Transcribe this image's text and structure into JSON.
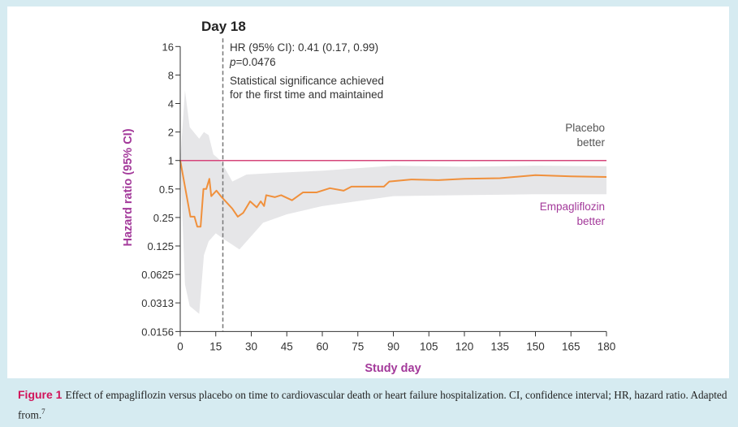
{
  "chart_data": {
    "type": "line",
    "title": "",
    "xlabel": "Study day",
    "ylabel": "Hazard ratio (95% CI)",
    "xlim": [
      0,
      180
    ],
    "ylim": [
      0.0156,
      16
    ],
    "yscale": "log2",
    "x_ticks": [
      0,
      15,
      30,
      45,
      60,
      75,
      90,
      105,
      120,
      135,
      150,
      165,
      180
    ],
    "y_ticks": [
      16,
      8,
      4,
      2,
      1,
      0.5,
      0.25,
      0.125,
      0.0625,
      0.0313,
      0.0156
    ],
    "y_tick_labels": [
      "16",
      "8",
      "4",
      "2",
      "1",
      "0.5",
      "0.25",
      "0.125",
      "0.0625",
      "0.0313",
      "0.0156"
    ],
    "grid": false,
    "reference_line": {
      "y": 1,
      "color": "#d6457a"
    },
    "marker_line": {
      "x": 18,
      "label": "Day 18"
    },
    "series": [
      {
        "name": "Hazard ratio",
        "color": "#f0903c",
        "points": [
          [
            0,
            1
          ],
          [
            4.3,
            0.255
          ],
          [
            6,
            0.255
          ],
          [
            7.2,
            0.2
          ],
          [
            8.6,
            0.2
          ],
          [
            9.8,
            0.5
          ],
          [
            11,
            0.5
          ],
          [
            12.3,
            0.64
          ],
          [
            13.1,
            0.42
          ],
          [
            15.3,
            0.48
          ],
          [
            17.5,
            0.41
          ],
          [
            22,
            0.31
          ],
          [
            24.3,
            0.255
          ],
          [
            26.6,
            0.28
          ],
          [
            29.5,
            0.37
          ],
          [
            32.3,
            0.32
          ],
          [
            34,
            0.37
          ],
          [
            35.4,
            0.33
          ],
          [
            36.3,
            0.43
          ],
          [
            40,
            0.41
          ],
          [
            42.6,
            0.43
          ],
          [
            47.2,
            0.38
          ],
          [
            51.8,
            0.46
          ],
          [
            57.5,
            0.46
          ],
          [
            63.2,
            0.51
          ],
          [
            69,
            0.48
          ],
          [
            72.3,
            0.53
          ],
          [
            86,
            0.53
          ],
          [
            88.3,
            0.6
          ],
          [
            97.5,
            0.63
          ],
          [
            109,
            0.62
          ],
          [
            120,
            0.64
          ],
          [
            135,
            0.65
          ],
          [
            150,
            0.7
          ],
          [
            165,
            0.68
          ],
          [
            180,
            0.67
          ]
        ]
      },
      {
        "name": "95% CI",
        "color": "#e6e6e8",
        "upper": [
          [
            0,
            1
          ],
          [
            2,
            5.5
          ],
          [
            4,
            2.25
          ],
          [
            8,
            1.7
          ],
          [
            10,
            2.0
          ],
          [
            12,
            1.85
          ],
          [
            14,
            1.16
          ],
          [
            17,
            1.0
          ],
          [
            22,
            0.6
          ],
          [
            28,
            0.71
          ],
          [
            40,
            0.74
          ],
          [
            60,
            0.78
          ],
          [
            90,
            0.88
          ],
          [
            120,
            0.86
          ],
          [
            150,
            0.88
          ],
          [
            180,
            0.87
          ]
        ],
        "lower": [
          [
            0,
            1
          ],
          [
            2,
            0.049
          ],
          [
            4,
            0.029
          ],
          [
            8,
            0.024
          ],
          [
            10,
            0.1
          ],
          [
            12,
            0.14
          ],
          [
            15,
            0.17
          ],
          [
            18,
            0.15
          ],
          [
            25,
            0.115
          ],
          [
            35,
            0.22
          ],
          [
            45,
            0.27
          ],
          [
            60,
            0.33
          ],
          [
            90,
            0.42
          ],
          [
            120,
            0.43
          ],
          [
            150,
            0.44
          ],
          [
            180,
            0.44
          ]
        ]
      }
    ],
    "annotations": {
      "day_label": "Day 18",
      "hr_line": "HR (95% CI): 0.41 (0.17, 0.99)",
      "p_label": "p",
      "p_value": "=0.0476",
      "sig_line1": "Statistical significance achieved",
      "sig_line2": "for the first time and maintained",
      "placebo_1": "Placebo",
      "placebo_2": "better",
      "empa_1": "Empagliflozin",
      "empa_2": "better"
    }
  },
  "caption": {
    "figure_label": "Figure 1",
    "text": "Effect of empagliflozin versus placebo on time to cardiovascular death or heart failure hospitalization. CI, confidence interval; HR, hazard ratio. Adapted from.",
    "superscript": "7"
  },
  "colors": {
    "accent": "#a3399a",
    "orange": "#f0903c",
    "reference": "#d6457a",
    "caption_label": "#d1145a"
  }
}
